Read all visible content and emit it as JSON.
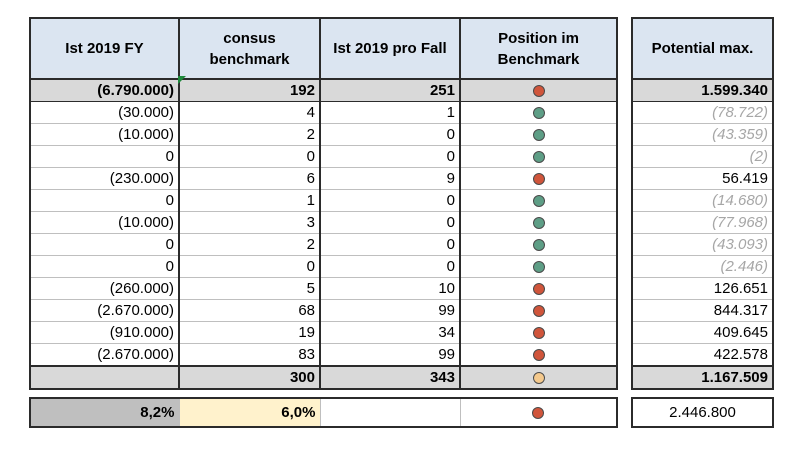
{
  "headers": {
    "ist_fy": "Ist 2019 FY",
    "consus_l1": "consus",
    "consus_l2": "benchmark",
    "ist_pro_fall": "Ist 2019 pro Fall",
    "position_l1": "Position im",
    "position_l2": "Benchmark",
    "potential": "Potential max."
  },
  "colors": {
    "red": "#d0553b",
    "green": "#5e9e86",
    "light": "#f4c98d",
    "header_bg": "#dbe5f1",
    "sum_bg": "#d9d9d9",
    "highlight_bg": "#fff2cc"
  },
  "rows": [
    {
      "ist_fy": "(6.790.000)",
      "consus": "192",
      "pro_fall": "251",
      "status": "red",
      "potential": "1.599.340",
      "potential_muted": false
    },
    {
      "ist_fy": "(30.000)",
      "consus": "4",
      "pro_fall": "1",
      "status": "green",
      "potential": "(78.722)",
      "potential_muted": true
    },
    {
      "ist_fy": "(10.000)",
      "consus": "2",
      "pro_fall": "0",
      "status": "green",
      "potential": "(43.359)",
      "potential_muted": true
    },
    {
      "ist_fy": "0",
      "consus": "0",
      "pro_fall": "0",
      "status": "green",
      "potential": "(2)",
      "potential_muted": true
    },
    {
      "ist_fy": "(230.000)",
      "consus": "6",
      "pro_fall": "9",
      "status": "red",
      "potential": "56.419",
      "potential_muted": false
    },
    {
      "ist_fy": "0",
      "consus": "1",
      "pro_fall": "0",
      "status": "green",
      "potential": "(14.680)",
      "potential_muted": true
    },
    {
      "ist_fy": "(10.000)",
      "consus": "3",
      "pro_fall": "0",
      "status": "green",
      "potential": "(77.968)",
      "potential_muted": true
    },
    {
      "ist_fy": "0",
      "consus": "2",
      "pro_fall": "0",
      "status": "green",
      "potential": "(43.093)",
      "potential_muted": true
    },
    {
      "ist_fy": "0",
      "consus": "0",
      "pro_fall": "0",
      "status": "green",
      "potential": "(2.446)",
      "potential_muted": true
    },
    {
      "ist_fy": "(260.000)",
      "consus": "5",
      "pro_fall": "10",
      "status": "red",
      "potential": "126.651",
      "potential_muted": false
    },
    {
      "ist_fy": "(2.670.000)",
      "consus": "68",
      "pro_fall": "99",
      "status": "red",
      "potential": "844.317",
      "potential_muted": false
    },
    {
      "ist_fy": "(910.000)",
      "consus": "19",
      "pro_fall": "34",
      "status": "red",
      "potential": "409.645",
      "potential_muted": false
    },
    {
      "ist_fy": "(2.670.000)",
      "consus": "83",
      "pro_fall": "99",
      "status": "red",
      "potential": "422.578",
      "potential_muted": false
    }
  ],
  "total": {
    "ist_fy": "",
    "consus": "300",
    "pro_fall": "343",
    "status": "light",
    "potential": "1.167.509"
  },
  "summary": {
    "left_pct": "8,2%",
    "consus_pct": "6,0%",
    "status": "red",
    "potential": "2.446.800"
  }
}
